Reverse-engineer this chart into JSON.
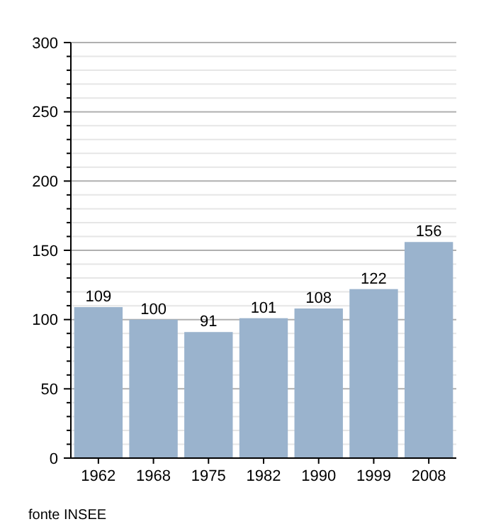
{
  "chart_data": {
    "type": "bar",
    "categories": [
      "1962",
      "1968",
      "1975",
      "1982",
      "1990",
      "1999",
      "2008"
    ],
    "values": [
      109,
      100,
      91,
      101,
      108,
      122,
      156
    ],
    "color": "#9ab3cd",
    "data_labels": true,
    "grid": "y",
    "ylim": [
      0,
      300
    ],
    "yticks": [
      0,
      {
        "value": 10,
        "label": null
      },
      {
        "value": 20,
        "label": null
      },
      {
        "value": 30,
        "label": null
      },
      {
        "value": 40,
        "label": null
      },
      50,
      {
        "value": 60,
        "label": null
      },
      {
        "value": 70,
        "label": null
      },
      {
        "value": 80,
        "label": null
      },
      {
        "value": 90,
        "label": null
      },
      100,
      {
        "value": 110,
        "label": null
      },
      {
        "value": 120,
        "label": null
      },
      {
        "value": 130,
        "label": null
      },
      {
        "value": 140,
        "label": null
      },
      150,
      {
        "value": 160,
        "label": null
      },
      {
        "value": 170,
        "label": null
      },
      {
        "value": 180,
        "label": null
      },
      {
        "value": 190,
        "label": null
      },
      200,
      {
        "value": 210,
        "label": null
      },
      {
        "value": 220,
        "label": null
      },
      {
        "value": 230,
        "label": null
      },
      {
        "value": 240,
        "label": null
      },
      250,
      {
        "value": 260,
        "label": null
      },
      {
        "value": 270,
        "label": null
      },
      {
        "value": 280,
        "label": null
      },
      {
        "value": 290,
        "label": null
      },
      300
    ],
    "annotations": [
      "fonte INSEE"
    ]
  }
}
